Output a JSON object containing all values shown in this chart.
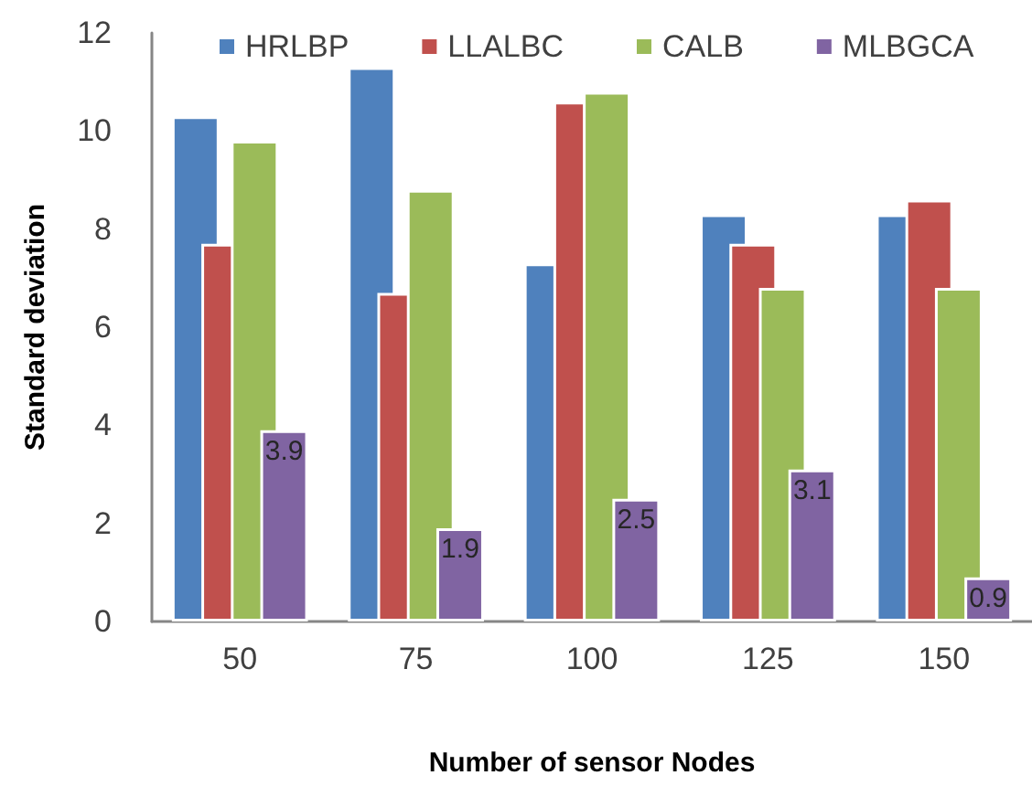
{
  "chart_data": {
    "type": "bar",
    "xlabel": "Number of sensor Nodes",
    "ylabel": "Standard deviation",
    "categories": [
      "50",
      "75",
      "100",
      "125",
      "150"
    ],
    "series": [
      {
        "name": "HRLBP",
        "color": "#4f81bd",
        "values": [
          10.3,
          11.3,
          7.3,
          8.3,
          8.3
        ]
      },
      {
        "name": "LLALBC",
        "color": "#c0504d",
        "values": [
          7.7,
          6.7,
          10.6,
          7.7,
          8.6
        ]
      },
      {
        "name": "CALB",
        "color": "#9bbb59",
        "values": [
          9.8,
          8.8,
          10.8,
          6.8,
          6.8
        ]
      },
      {
        "name": "MLBGCA",
        "color": "#8064a2",
        "values": [
          3.9,
          1.9,
          2.5,
          3.1,
          0.9
        ],
        "value_labels": [
          "3.9",
          "1.9",
          "2.5",
          "3.1",
          "0.9"
        ]
      }
    ],
    "ylim": [
      0,
      12
    ],
    "yticks": [
      0,
      2,
      4,
      6,
      8,
      10,
      12
    ],
    "grid": false,
    "legend": "top"
  }
}
